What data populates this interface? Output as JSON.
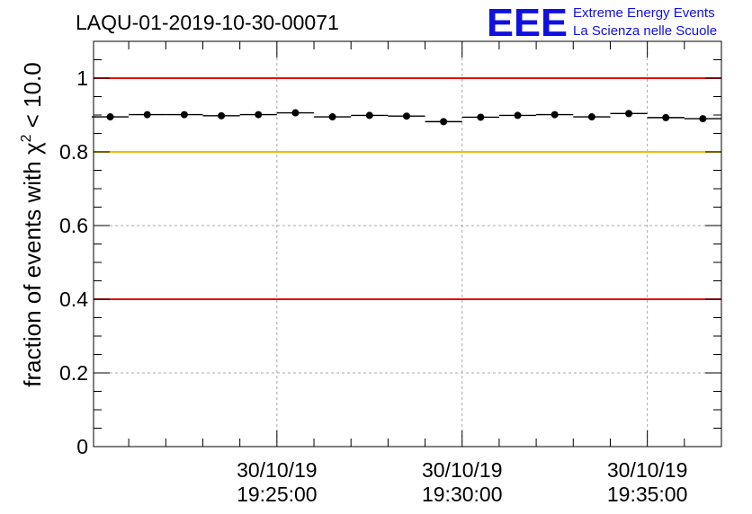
{
  "header": {
    "run_title": "LAQU-01-2019-10-30-00071"
  },
  "logo": {
    "letters": "EEE",
    "line1": "Extreme Energy Events",
    "line2": "La Scienza nelle Scuole",
    "color": "#1010e0"
  },
  "chart_data": {
    "type": "scatter",
    "title": "LAQU-01-2019-10-30-00071",
    "xlabel": "",
    "ylabel": "fraction of events with χ² < 10.0",
    "ylabel_parts": {
      "main": "fraction of events with χ",
      "sup": "2",
      "tail": " < 10.0"
    },
    "ylim": [
      0,
      1.1
    ],
    "y_ticks": [
      0,
      0.2,
      0.4,
      0.6,
      0.8,
      1
    ],
    "y_tick_labels": [
      "0",
      "0.2",
      "0.4",
      "0.6",
      "0.8",
      "1"
    ],
    "xlim_minutes": [
      19.05,
      36.0
    ],
    "x_major_ticks": [
      {
        "minute": 24.0,
        "date": "30/10/19",
        "time": "19:25:00"
      },
      {
        "minute": 29.0,
        "date": "30/10/19",
        "time": "19:30:00"
      },
      {
        "minute": 34.0,
        "date": "30/10/19",
        "time": "19:35:00"
      }
    ],
    "x_minor_step_minutes": 1,
    "grid": true,
    "reference_lines": [
      {
        "y": 1.0,
        "color": "#e01010"
      },
      {
        "y": 0.8,
        "color": "#f0b800"
      },
      {
        "y": 0.4,
        "color": "#e01010"
      }
    ],
    "series": [
      {
        "name": "fraction",
        "bin_width_minutes": 1.0,
        "x_minutes": [
          19.5,
          20.5,
          21.5,
          22.5,
          23.5,
          24.5,
          25.5,
          26.5,
          27.5,
          28.5,
          29.5,
          30.5,
          31.5,
          32.5,
          33.5,
          34.5,
          35.5
        ],
        "values": [
          0.895,
          0.901,
          0.901,
          0.898,
          0.901,
          0.906,
          0.895,
          0.899,
          0.897,
          0.882,
          0.894,
          0.899,
          0.901,
          0.895,
          0.904,
          0.893,
          0.89
        ]
      }
    ]
  }
}
